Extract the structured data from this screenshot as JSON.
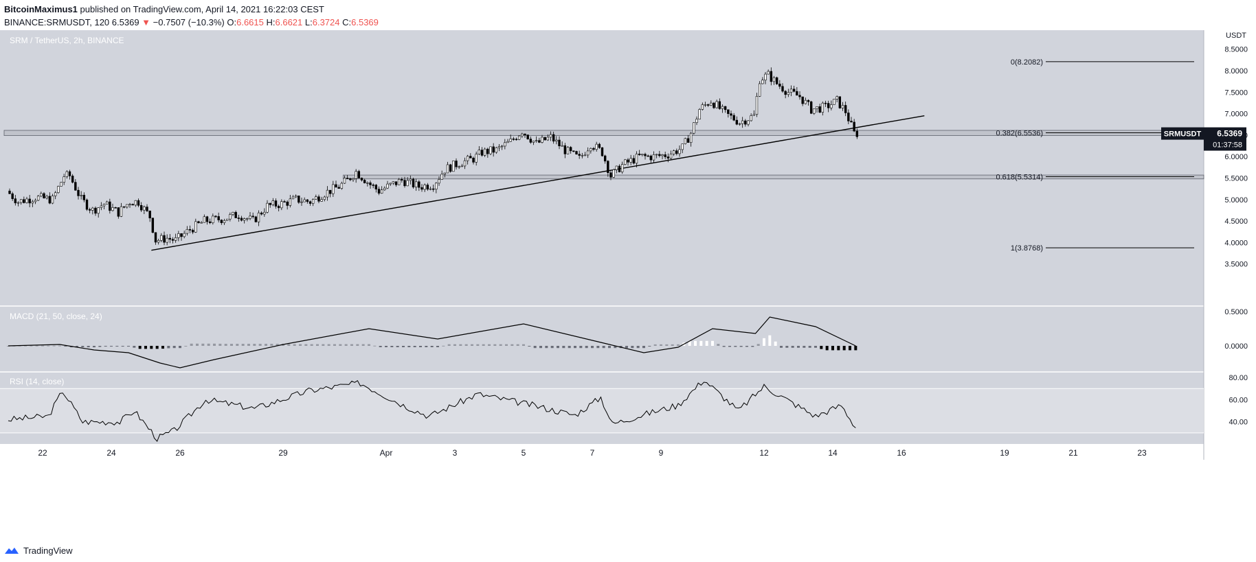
{
  "header": {
    "author": "BitcoinMaximus1",
    "published": "published on TradingView.com, April 14, 2021 16:22:03 CEST",
    "symbol_line": "BINANCE:SRMUSDT, 120",
    "last": "6.5369",
    "change": "−0.7507 (−10.3%)",
    "o_label": "O:",
    "o_val": "6.6615",
    "h_label": "H:",
    "h_val": "6.6621",
    "l_label": "L:",
    "l_val": "6.3724",
    "c_label": "C:",
    "c_val": "6.5369"
  },
  "footer": {
    "brand": "TradingView",
    "icon": "tradingview-logo-icon"
  },
  "colors": {
    "pane_bg": "#d1d4dc",
    "rsi_band": "#dcdee4",
    "axis_bg": "#ffffff",
    "line": "#000000",
    "down": "#ef5350",
    "candle_up": "#ffffff",
    "candle_down": "#000000"
  },
  "chart_data": {
    "type": "candlestick",
    "title": "SRM / TetherUS, 2h, BINANCE",
    "price_axis": {
      "label": "USDT",
      "ticks": [
        "8.5000",
        "8.0000",
        "7.5000",
        "7.0000",
        "6.5000",
        "6.0000",
        "5.5000",
        "5.0000",
        "4.5000",
        "4.0000",
        "3.5000"
      ],
      "ylim": [
        3.0,
        8.75
      ]
    },
    "x_axis": {
      "ticks": [
        "22",
        "24",
        "26",
        "29",
        "Apr",
        "3",
        "5",
        "7",
        "9",
        "12",
        "14",
        "16",
        "19",
        "21",
        "23"
      ],
      "tick_dates": [
        "2021-03-22",
        "2021-03-24",
        "2021-03-26",
        "2021-03-29",
        "2021-04-01",
        "2021-04-03",
        "2021-04-05",
        "2021-04-07",
        "2021-04-09",
        "2021-04-12",
        "2021-04-14",
        "2021-04-16",
        "2021-04-19",
        "2021-04-21",
        "2021-04-23"
      ]
    },
    "price_points": [
      [
        "2021-03-21 00:00",
        5.2
      ],
      [
        "2021-03-21 08:00",
        4.95
      ],
      [
        "2021-03-21 20:00",
        5.05
      ],
      [
        "2021-03-22 08:00",
        5.0
      ],
      [
        "2021-03-22 16:00",
        5.55
      ],
      [
        "2021-03-22 20:00",
        5.55
      ],
      [
        "2021-03-23 04:00",
        5.0
      ],
      [
        "2021-03-23 12:00",
        4.75
      ],
      [
        "2021-03-23 20:00",
        4.9
      ],
      [
        "2021-03-24 06:00",
        4.7
      ],
      [
        "2021-03-24 14:00",
        4.95
      ],
      [
        "2021-03-24 20:00",
        4.95
      ],
      [
        "2021-03-25 04:00",
        4.6
      ],
      [
        "2021-03-25 08:00",
        4.05
      ],
      [
        "2021-03-25 16:00",
        4.1
      ],
      [
        "2021-03-25 22:00",
        4.05
      ],
      [
        "2021-03-26 08:00",
        4.3
      ],
      [
        "2021-03-26 18:00",
        4.5
      ],
      [
        "2021-03-27 06:00",
        4.55
      ],
      [
        "2021-03-27 18:00",
        4.65
      ],
      [
        "2021-03-28 04:00",
        4.5
      ],
      [
        "2021-03-28 14:00",
        4.85
      ],
      [
        "2021-03-29 00:00",
        4.9
      ],
      [
        "2021-03-29 10:00",
        5.0
      ],
      [
        "2021-03-29 20:00",
        4.95
      ],
      [
        "2021-03-30 06:00",
        5.15
      ],
      [
        "2021-03-30 16:00",
        5.3
      ],
      [
        "2021-03-30 22:00",
        5.45
      ],
      [
        "2021-03-31 04:00",
        5.65
      ],
      [
        "2021-03-31 14:00",
        5.35
      ],
      [
        "2021-03-31 20:00",
        5.2
      ],
      [
        "2021-04-01 02:00",
        5.3
      ],
      [
        "2021-04-01 12:00",
        5.45
      ],
      [
        "2021-04-02 00:00",
        5.3
      ],
      [
        "2021-04-02 10:00",
        5.35
      ],
      [
        "2021-04-02 18:00",
        5.7
      ],
      [
        "2021-04-03 04:00",
        5.85
      ],
      [
        "2021-04-03 14:00",
        5.95
      ],
      [
        "2021-04-03 20:00",
        6.1
      ],
      [
        "2021-04-04 06:00",
        6.15
      ],
      [
        "2021-04-04 16:00",
        6.35
      ],
      [
        "2021-04-05 00:00",
        6.6
      ],
      [
        "2021-04-05 10:00",
        6.3
      ],
      [
        "2021-04-05 20:00",
        6.45
      ],
      [
        "2021-04-06 06:00",
        6.15
      ],
      [
        "2021-04-06 16:00",
        5.95
      ],
      [
        "2021-04-07 00:00",
        6.3
      ],
      [
        "2021-04-07 08:00",
        6.1
      ],
      [
        "2021-04-07 14:00",
        5.55
      ],
      [
        "2021-04-07 22:00",
        5.8
      ],
      [
        "2021-04-08 10:00",
        6.0
      ],
      [
        "2021-04-08 20:00",
        6.0
      ],
      [
        "2021-04-09 06:00",
        6.05
      ],
      [
        "2021-04-09 16:00",
        6.2
      ],
      [
        "2021-04-09 22:00",
        6.55
      ],
      [
        "2021-04-10 04:00",
        7.1
      ],
      [
        "2021-04-10 12:00",
        7.3
      ],
      [
        "2021-04-10 22:00",
        7.0
      ],
      [
        "2021-04-11 08:00",
        6.8
      ],
      [
        "2021-04-11 18:00",
        6.95
      ],
      [
        "2021-04-11 22:00",
        7.8
      ],
      [
        "2021-04-12 04:00",
        7.9
      ],
      [
        "2021-04-12 10:00",
        7.7
      ],
      [
        "2021-04-12 18:00",
        7.5
      ],
      [
        "2021-04-13 02:00",
        7.4
      ],
      [
        "2021-04-13 10:00",
        7.1
      ],
      [
        "2021-04-13 20:00",
        7.15
      ],
      [
        "2021-04-14 04:00",
        7.3
      ],
      [
        "2021-04-14 10:00",
        7.05
      ],
      [
        "2021-04-14 16:00",
        6.54
      ]
    ],
    "last_price": {
      "label": "SRMUSDT",
      "value": "6.5369",
      "countdown": "01:37:58"
    },
    "fibonacci": [
      {
        "label": "0(8.2082)",
        "value": 8.2082
      },
      {
        "label": "0.382(6.5536)",
        "value": 6.5536
      },
      {
        "label": "0.618(5.5314)",
        "value": 5.5314
      },
      {
        "label": "1(3.8768)",
        "value": 3.8768
      }
    ],
    "support_zones": [
      [
        6.49,
        6.61
      ],
      [
        5.48,
        5.57
      ]
    ],
    "trendline": {
      "from": [
        "2021-03-25 04:00",
        3.82
      ],
      "to": [
        "2021-04-16 16:00",
        6.95
      ]
    },
    "macd": {
      "title": "MACD (21, 50, close, 24)",
      "ticks": [
        "0.5000",
        "0.0000"
      ],
      "ylim": [
        -0.38,
        0.58
      ],
      "line": [
        [
          "2021-03-21 00:00",
          0.0
        ],
        [
          "2021-03-22 12:00",
          0.02
        ],
        [
          "2021-03-23 12:00",
          -0.06
        ],
        [
          "2021-03-24 12:00",
          -0.1
        ],
        [
          "2021-03-25 10:00",
          -0.25
        ],
        [
          "2021-03-26 00:00",
          -0.32
        ],
        [
          "2021-03-27 00:00",
          -0.2
        ],
        [
          "2021-03-29 00:00",
          0.02
        ],
        [
          "2021-03-31 12:00",
          0.25
        ],
        [
          "2021-04-02 12:00",
          0.1
        ],
        [
          "2021-04-05 00:00",
          0.32
        ],
        [
          "2021-04-07 12:00",
          0.02
        ],
        [
          "2021-04-08 12:00",
          -0.1
        ],
        [
          "2021-04-09 12:00",
          -0.02
        ],
        [
          "2021-04-10 12:00",
          0.25
        ],
        [
          "2021-04-11 18:00",
          0.18
        ],
        [
          "2021-04-12 04:00",
          0.42
        ],
        [
          "2021-04-13 12:00",
          0.28
        ],
        [
          "2021-04-14 16:00",
          0.0
        ]
      ]
    },
    "rsi": {
      "title": "RSI (14, close)",
      "ticks": [
        "80.00",
        "60.00",
        "40.00"
      ],
      "ylim": [
        20,
        85
      ],
      "band": [
        30,
        70
      ],
      "line": [
        [
          "2021-03-21 00:00",
          42
        ],
        [
          "2021-03-22 04:00",
          45
        ],
        [
          "2021-03-22 14:00",
          68
        ],
        [
          "2021-03-23 04:00",
          40
        ],
        [
          "2021-03-24 06:00",
          40
        ],
        [
          "2021-03-24 16:00",
          50
        ],
        [
          "2021-03-25 08:00",
          25
        ],
        [
          "2021-03-25 20:00",
          32
        ],
        [
          "2021-03-26 18:00",
          60
        ],
        [
          "2021-03-28 04:00",
          52
        ],
        [
          "2021-03-29 18:00",
          68
        ],
        [
          "2021-03-31 06:00",
          75
        ],
        [
          "2021-04-01 12:00",
          55
        ],
        [
          "2021-04-02 06:00",
          45
        ],
        [
          "2021-04-03 16:00",
          65
        ],
        [
          "2021-04-05 06:00",
          55
        ],
        [
          "2021-04-06 12:00",
          46
        ],
        [
          "2021-04-07 06:00",
          62
        ],
        [
          "2021-04-07 14:00",
          38
        ],
        [
          "2021-04-08 16:00",
          48
        ],
        [
          "2021-04-09 12:00",
          55
        ],
        [
          "2021-04-10 06:00",
          78
        ],
        [
          "2021-04-11 06:00",
          50
        ],
        [
          "2021-04-12 00:00",
          72
        ],
        [
          "2021-04-13 12:00",
          45
        ],
        [
          "2021-04-14 06:00",
          55
        ],
        [
          "2021-04-14 16:00",
          35
        ]
      ]
    }
  }
}
